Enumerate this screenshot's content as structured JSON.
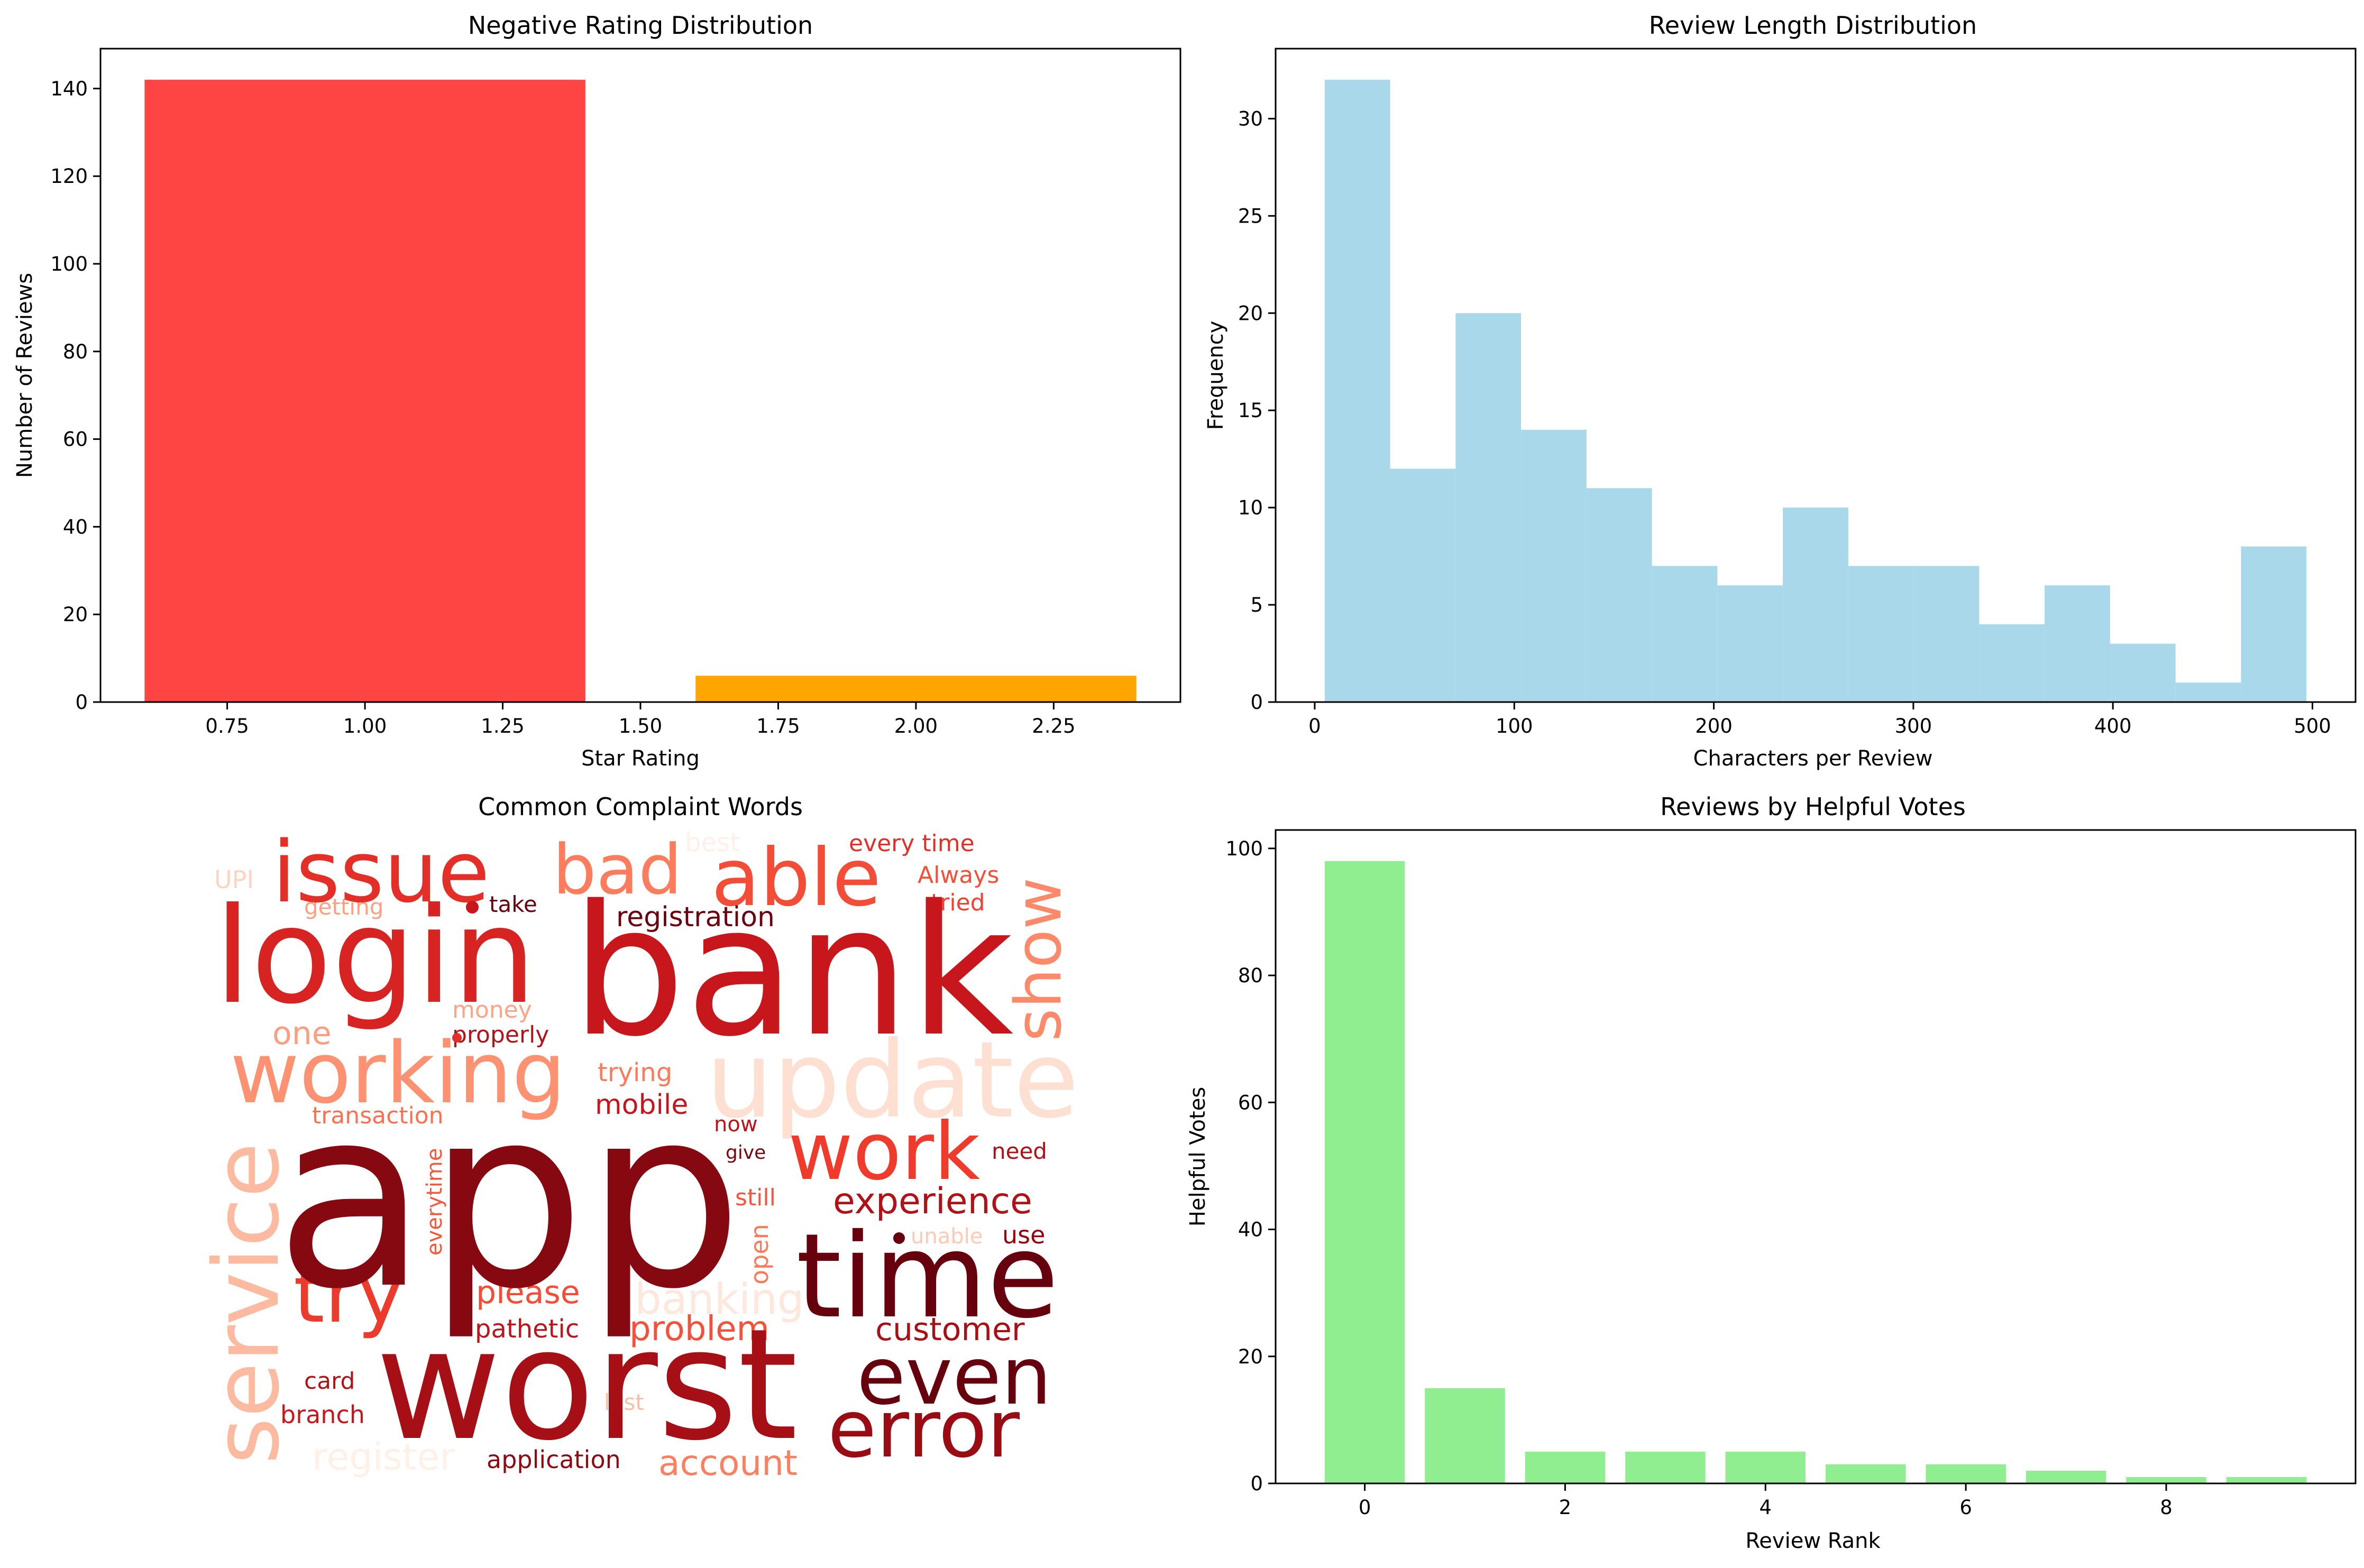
{
  "figure": {
    "background": "#ffffff"
  },
  "chart_data": [
    {
      "id": "ratings",
      "type": "bar",
      "title": "Negative Rating Distribution",
      "xlabel": "Star Rating",
      "ylabel": "Number of Reviews",
      "bars": [
        {
          "x": 1,
          "value": 142,
          "color": "#ff4444"
        },
        {
          "x": 2,
          "value": 6,
          "color": "#ffa500"
        }
      ],
      "bar_width": 0.8,
      "xlim": [
        0.52,
        2.48
      ],
      "ylim": [
        0,
        149.1
      ],
      "xticks": [
        0.75,
        1.0,
        1.25,
        1.5,
        1.75,
        2.0,
        2.25
      ],
      "xtick_labels": [
        "0.75",
        "1.00",
        "1.25",
        "1.50",
        "1.75",
        "2.00",
        "2.25"
      ],
      "yticks": [
        0,
        20,
        40,
        60,
        80,
        100,
        120,
        140
      ],
      "grid": false
    },
    {
      "id": "length",
      "type": "bar",
      "subtype": "histogram",
      "title": "Review Length Distribution",
      "xlabel": "Characters per Review",
      "ylabel": "Frequency",
      "color": "#a8d8ea",
      "bin_edges": [
        5,
        37.8,
        70.6,
        103.4,
        136.2,
        169,
        201.8,
        234.6,
        267.4,
        300.2,
        333,
        365.8,
        398.6,
        431.4,
        464.2,
        497
      ],
      "counts": [
        32,
        12,
        20,
        14,
        11,
        7,
        6,
        10,
        7,
        7,
        4,
        6,
        3,
        1,
        8
      ],
      "xlim": [
        -19.6,
        521.6
      ],
      "ylim": [
        0,
        33.6
      ],
      "xticks": [
        0,
        100,
        200,
        300,
        400,
        500
      ],
      "yticks": [
        0,
        5,
        10,
        15,
        20,
        25,
        30
      ],
      "grid": false
    },
    {
      "id": "helpful",
      "type": "bar",
      "title": "Reviews by Helpful Votes",
      "xlabel": "Review Rank",
      "ylabel": "Helpful Votes",
      "color": "#90ee90",
      "categories": [
        0,
        1,
        2,
        3,
        4,
        5,
        6,
        7,
        8,
        9
      ],
      "values": [
        98,
        15,
        5,
        5,
        5,
        3,
        3,
        2,
        1,
        1
      ],
      "bar_width": 0.8,
      "xlim": [
        -0.89,
        9.89
      ],
      "ylim": [
        0,
        102.9
      ],
      "xticks": [
        0,
        2,
        4,
        6,
        8
      ],
      "yticks": [
        0,
        20,
        40,
        60,
        80,
        100
      ],
      "grid": false
    }
  ],
  "wordcloud": {
    "title": "Common Complaint Words",
    "colormap": "Reds",
    "words": [
      {
        "text": "app",
        "color": "#860811"
      },
      {
        "text": "bank",
        "color": "#c8171c"
      },
      {
        "text": "worst",
        "color": "#a50f15"
      },
      {
        "text": "time",
        "color": "#67000d"
      },
      {
        "text": "login",
        "color": "#d72322"
      },
      {
        "text": "update",
        "color": "#fde0d2"
      },
      {
        "text": "working",
        "color": "#fc9272"
      },
      {
        "text": "service",
        "color": "#fcbba1"
      },
      {
        "text": "issue",
        "color": "#e32f27"
      },
      {
        "text": "able",
        "color": "#f34c37"
      },
      {
        "text": "bad",
        "color": "#fb7d5d"
      },
      {
        "text": "work",
        "color": "#ef3b2c"
      },
      {
        "text": "even",
        "color": "#67000d"
      },
      {
        "text": "error",
        "color": "#9a0c14"
      },
      {
        "text": "try",
        "color": "#ec3b2c"
      },
      {
        "text": "show",
        "color": "#fc8a6a"
      },
      {
        "text": "experience",
        "color": "#b11218"
      },
      {
        "text": "customer",
        "color": "#a81016"
      },
      {
        "text": "account",
        "color": "#fb8060"
      },
      {
        "text": "registration",
        "color": "#6b010e"
      },
      {
        "text": "problem",
        "color": "#f4503a"
      },
      {
        "text": "banking",
        "color": "#fee7dc"
      },
      {
        "text": "please",
        "color": "#f34c37"
      },
      {
        "text": "pathetic",
        "color": "#bb141a"
      },
      {
        "text": "application",
        "color": "#8e0912"
      },
      {
        "text": "register",
        "color": "#fff0e8"
      },
      {
        "text": "branch",
        "color": "#c8171c"
      },
      {
        "text": "card",
        "color": "#b11218"
      },
      {
        "text": "last",
        "color": "#fcbea5"
      },
      {
        "text": "every time",
        "color": "#e32f27"
      },
      {
        "text": "Always",
        "color": "#f44f39"
      },
      {
        "text": "tried",
        "color": "#f14130"
      },
      {
        "text": "UPI",
        "color": "#fdd4c2"
      },
      {
        "text": "getting",
        "color": "#fca082"
      },
      {
        "text": "take",
        "color": "#67000d"
      },
      {
        "text": "best",
        "color": "#fff0e9"
      },
      {
        "text": "one",
        "color": "#fc9e80"
      },
      {
        "text": "money",
        "color": "#fca486"
      },
      {
        "text": "properly",
        "color": "#b31218"
      },
      {
        "text": "trying",
        "color": "#fb7a5a"
      },
      {
        "text": "mobile",
        "color": "#c4161c"
      },
      {
        "text": "transaction",
        "color": "#fb7050"
      },
      {
        "text": "now",
        "color": "#b91419"
      },
      {
        "text": "give",
        "color": "#7c0510"
      },
      {
        "text": "need",
        "color": "#af1117"
      },
      {
        "text": "still",
        "color": "#f5553c"
      },
      {
        "text": "unable",
        "color": "#fdcab5"
      },
      {
        "text": "use",
        "color": "#99000d"
      },
      {
        "text": "open",
        "color": "#fb7a5a"
      },
      {
        "text": "everytime",
        "color": "#f6583e"
      }
    ]
  }
}
